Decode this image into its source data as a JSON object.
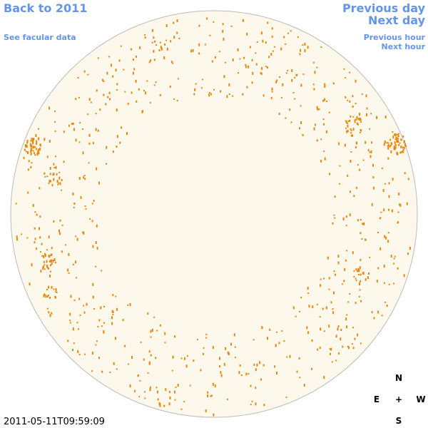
{
  "nav": {
    "back": "Back to 2011",
    "facular": "See facular data",
    "prev_day": "Previous day",
    "next_day": "Next day",
    "prev_hour": "Previous hour",
    "next_hour": "Next hour"
  },
  "compass": {
    "n": "N",
    "e": "E",
    "center": "+",
    "w": "W",
    "s": "S"
  },
  "timestamp": "2011-05-11T09:59:09"
}
